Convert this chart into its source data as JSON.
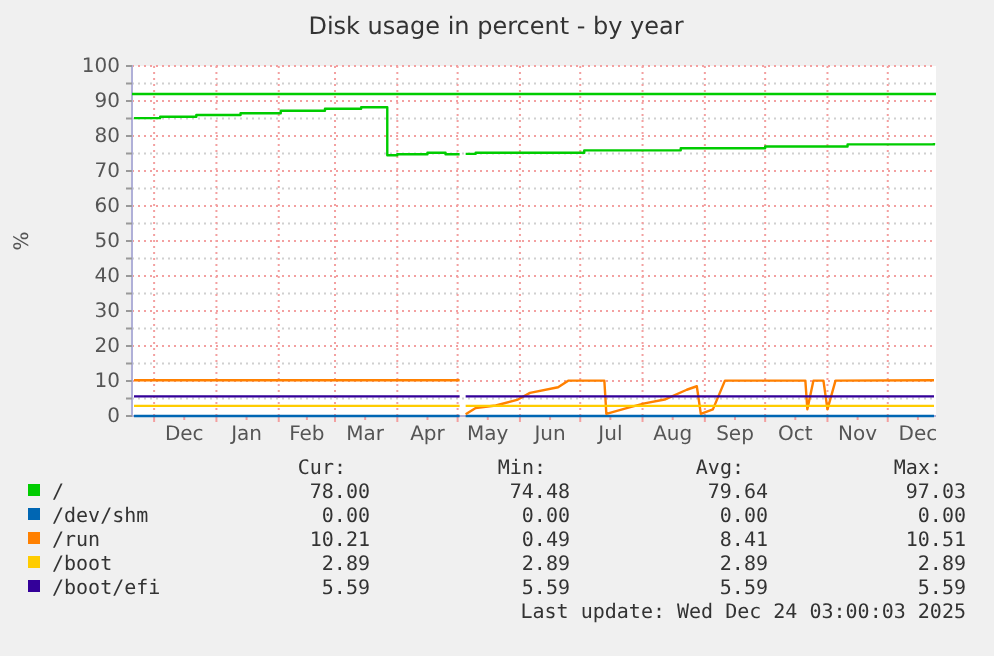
{
  "chart_data": {
    "type": "line",
    "title": "Disk usage in percent - by year",
    "ylabel": "%",
    "xlim": [
      "2024-11-20",
      "2025-12-25"
    ],
    "xticks": [
      {
        "value": "2024-12-01",
        "label": null
      },
      {
        "value": "2024-12-16",
        "label": "Dec"
      },
      {
        "value": "2025-01-01",
        "label": null
      },
      {
        "value": "2025-01-16",
        "label": "Jan"
      },
      {
        "value": "2025-02-01",
        "label": null
      },
      {
        "value": "2025-02-15",
        "label": "Feb"
      },
      {
        "value": "2025-03-01",
        "label": null
      },
      {
        "value": "2025-03-16",
        "label": "Mar"
      },
      {
        "value": "2025-04-01",
        "label": null
      },
      {
        "value": "2025-04-16",
        "label": "Apr"
      },
      {
        "value": "2025-05-01",
        "label": null
      },
      {
        "value": "2025-05-16",
        "label": "May"
      },
      {
        "value": "2025-06-01",
        "label": null
      },
      {
        "value": "2025-06-16",
        "label": "Jun"
      },
      {
        "value": "2025-07-01",
        "label": null
      },
      {
        "value": "2025-07-16",
        "label": "Jul"
      },
      {
        "value": "2025-08-01",
        "label": null
      },
      {
        "value": "2025-08-16",
        "label": "Aug"
      },
      {
        "value": "2025-09-01",
        "label": null
      },
      {
        "value": "2025-09-16",
        "label": "Sep"
      },
      {
        "value": "2025-10-01",
        "label": null
      },
      {
        "value": "2025-10-16",
        "label": "Oct"
      },
      {
        "value": "2025-11-01",
        "label": null
      },
      {
        "value": "2025-11-16",
        "label": "Nov"
      },
      {
        "value": "2025-12-01",
        "label": null
      },
      {
        "value": "2025-12-16",
        "label": "Dec"
      }
    ],
    "ylim": [
      0,
      100
    ],
    "yticks": [
      0,
      {
        "value": 5,
        "label": null
      },
      10,
      {
        "value": 15,
        "label": null
      },
      20,
      {
        "value": 25,
        "label": null
      },
      30,
      {
        "value": 35,
        "label": null
      },
      40,
      {
        "value": 45,
        "label": null
      },
      50,
      {
        "value": 55,
        "label": null
      },
      60,
      {
        "value": 65,
        "label": null
      },
      70,
      {
        "value": 75,
        "label": null
      },
      80,
      {
        "value": 85,
        "label": null
      },
      90,
      {
        "value": 95,
        "label": null
      },
      100
    ],
    "grid": true,
    "legend": "bottom",
    "ref_lines": [
      {
        "axis": "y",
        "value": 92,
        "color": "#00cc00"
      }
    ],
    "series": [
      {
        "name": "/",
        "type": "step",
        "color": "#00cc00",
        "x": [
          "2024-11-21",
          "2024-12-04",
          "2024-12-22",
          "2025-01-13",
          "2025-02-02",
          "2025-02-24",
          "2025-03-14",
          "2025-03-27",
          "2025-04-01",
          "2025-04-16",
          "2025-04-25",
          "2025-05-02",
          "2025-05-03",
          "2025-05-05",
          "2025-05-10",
          "2025-07-03",
          "2025-08-20",
          "2025-10-01",
          "2025-11-11",
          "2025-12-24"
        ],
        "values": [
          85.1,
          85.5,
          86.0,
          86.5,
          87.2,
          87.8,
          88.2,
          74.5,
          74.8,
          75.2,
          74.8,
          74.8,
          null,
          74.9,
          75.2,
          75.9,
          76.5,
          77.0,
          77.6,
          78.0
        ]
      },
      {
        "name": "/dev/shm",
        "color": "#0066b3",
        "x": [
          "2024-11-21",
          "2025-05-02",
          "2025-05-03",
          "2025-05-05",
          "2025-12-24"
        ],
        "values": [
          0,
          0,
          null,
          0,
          0
        ]
      },
      {
        "name": "/run",
        "color": "#ff8000",
        "x": [
          "2024-11-21",
          "2025-05-02",
          "2025-05-03",
          "2025-05-05",
          "2025-05-10",
          "2025-05-20",
          "2025-05-31",
          "2025-06-06",
          "2025-06-20",
          "2025-06-25",
          "2025-07-13",
          "2025-07-14",
          "2025-07-25",
          "2025-08-02",
          "2025-08-12",
          "2025-08-23",
          "2025-08-28",
          "2025-08-30",
          "2025-09-05",
          "2025-09-11",
          "2025-10-21",
          "2025-10-22",
          "2025-10-25",
          "2025-10-30",
          "2025-11-01",
          "2025-11-05",
          "2025-12-24"
        ],
        "values": [
          10.2,
          10.2,
          null,
          0.5,
          2.3,
          3.0,
          4.7,
          6.6,
          8.2,
          10.1,
          10.1,
          0.6,
          2.4,
          3.6,
          4.7,
          7.5,
          8.5,
          0.6,
          1.9,
          10.1,
          10.1,
          1.9,
          10.1,
          10.1,
          1.9,
          10.1,
          10.2
        ]
      },
      {
        "name": "/boot",
        "color": "#ffcc00",
        "x": [
          "2024-11-21",
          "2025-05-02",
          "2025-05-03",
          "2025-05-05",
          "2025-12-24"
        ],
        "values": [
          2.9,
          2.9,
          null,
          2.9,
          2.9
        ]
      },
      {
        "name": "/boot/efi",
        "color": "#330099",
        "x": [
          "2024-11-21",
          "2025-05-02",
          "2025-05-03",
          "2025-05-05",
          "2025-12-24"
        ],
        "values": [
          5.6,
          5.6,
          null,
          5.6,
          5.6
        ]
      }
    ],
    "annotations": [
      "Cur:",
      "Min:",
      "Avg:",
      "Max:",
      "78.00",
      "74.48",
      "79.64",
      "97.03",
      "0.00",
      "0.00",
      "0.00",
      "0.00",
      "10.21",
      "0.49",
      "8.41",
      "10.51",
      "2.89",
      "2.89",
      "2.89",
      "2.89",
      "5.59",
      "5.59",
      "5.59",
      "5.59",
      "Last update: Wed Dec 24 03:00:03 2025"
    ]
  }
}
